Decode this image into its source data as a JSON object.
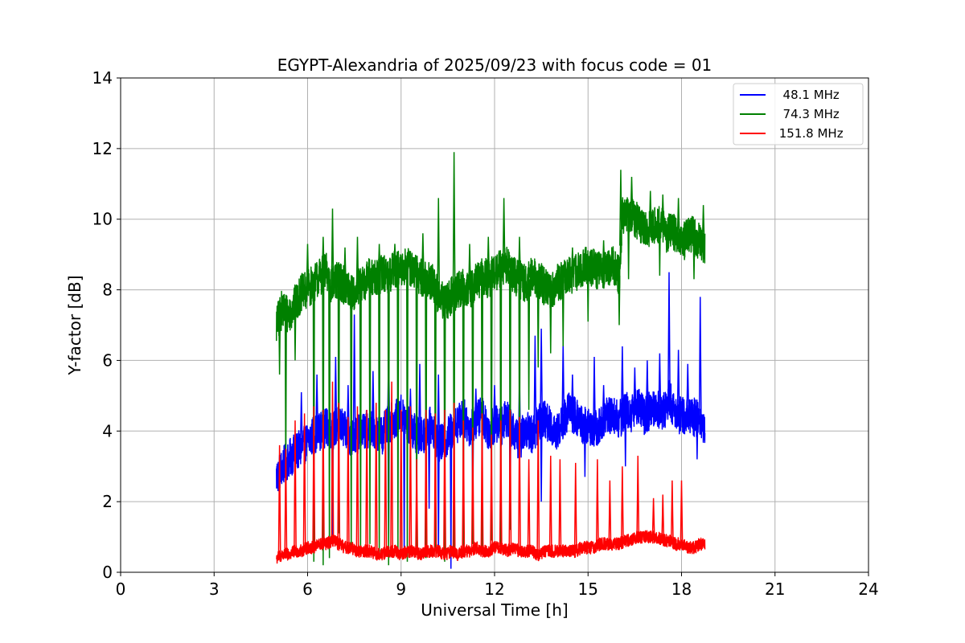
{
  "chart_data": {
    "type": "line",
    "title": "EGYPT-Alexandria of 2025/09/23 with focus code = 01",
    "xlabel": "Universal Time [h]",
    "ylabel": "Y-factor [dB]",
    "xlim": [
      0,
      24
    ],
    "ylim": [
      0,
      14
    ],
    "xticks": [
      0,
      3,
      6,
      9,
      12,
      15,
      18,
      21,
      24
    ],
    "yticks": [
      0,
      2,
      4,
      6,
      8,
      10,
      12,
      14
    ],
    "grid": true,
    "legend_position": "top-right",
    "series": [
      {
        "name": "  48.1 MHz",
        "color": "#0000ff",
        "x": [
          5.0,
          5.2,
          5.4,
          5.6,
          5.8,
          6.0,
          6.2,
          6.4,
          6.6,
          6.8,
          7.0,
          7.2,
          7.4,
          7.6,
          7.8,
          8.0,
          8.2,
          8.4,
          8.6,
          8.8,
          9.0,
          9.2,
          9.4,
          9.6,
          9.8,
          10.0,
          10.2,
          10.4,
          10.6,
          10.8,
          11.0,
          11.2,
          11.4,
          11.6,
          11.8,
          12.0,
          12.2,
          12.4,
          12.6,
          12.8,
          13.0,
          13.2,
          13.4,
          13.6,
          13.8,
          14.0,
          14.2,
          14.4,
          14.6,
          14.8,
          15.0,
          15.2,
          15.4,
          15.6,
          15.8,
          16.0,
          16.2,
          16.4,
          16.6,
          16.8,
          17.0,
          17.2,
          17.4,
          17.6,
          17.8,
          18.0,
          18.2,
          18.4,
          18.6,
          18.75
        ],
        "values": [
          2.7,
          3.0,
          3.2,
          3.4,
          3.5,
          3.7,
          3.9,
          4.0,
          4.1,
          4.0,
          4.2,
          4.0,
          3.8,
          3.9,
          4.0,
          4.1,
          4.0,
          3.9,
          4.2,
          4.3,
          4.5,
          4.2,
          4.0,
          3.8,
          4.0,
          4.2,
          3.6,
          3.7,
          4.0,
          4.2,
          4.4,
          4.1,
          4.3,
          4.5,
          4.0,
          4.2,
          4.1,
          4.4,
          4.0,
          3.7,
          4.1,
          3.9,
          4.2,
          4.4,
          4.1,
          4.0,
          4.3,
          4.6,
          4.4,
          4.2,
          4.1,
          4.0,
          4.2,
          4.4,
          4.5,
          4.3,
          4.6,
          4.5,
          4.8,
          4.4,
          4.6,
          4.7,
          4.5,
          4.9,
          4.6,
          4.4,
          4.5,
          4.4,
          4.3,
          4.0
        ],
        "spikes": [
          [
            5.8,
            5.1
          ],
          [
            6.3,
            5.6
          ],
          [
            6.9,
            6.1
          ],
          [
            7.3,
            5.3
          ],
          [
            7.5,
            7.3
          ],
          [
            8.1,
            5.7
          ],
          [
            8.6,
            6.4
          ],
          [
            9.3,
            5.2
          ],
          [
            9.6,
            5.9
          ],
          [
            10.2,
            5.6
          ],
          [
            11.4,
            5.2
          ],
          [
            12.0,
            5.3
          ],
          [
            12.8,
            5.6
          ],
          [
            13.3,
            6.7
          ],
          [
            13.5,
            6.9
          ],
          [
            14.2,
            6.5
          ],
          [
            14.5,
            5.6
          ],
          [
            15.2,
            6.1
          ],
          [
            15.5,
            5.3
          ],
          [
            16.1,
            6.4
          ],
          [
            16.5,
            5.8
          ],
          [
            16.9,
            6.0
          ],
          [
            17.3,
            6.2
          ],
          [
            17.6,
            8.5
          ],
          [
            17.9,
            6.3
          ],
          [
            18.2,
            5.9
          ],
          [
            18.6,
            7.8
          ]
        ],
        "dips": [
          [
            5.05,
            2.3
          ],
          [
            6.8,
            1.0
          ],
          [
            8.6,
            0.8
          ],
          [
            9.1,
            0.6
          ],
          [
            9.9,
            1.8
          ],
          [
            10.2,
            0.5
          ],
          [
            10.6,
            0.1
          ],
          [
            11.3,
            1.2
          ],
          [
            12.5,
            1.5
          ],
          [
            13.5,
            2.0
          ],
          [
            14.9,
            2.7
          ],
          [
            16.2,
            3.0
          ],
          [
            18.5,
            3.2
          ]
        ]
      },
      {
        "name": "  74.3 MHz",
        "color": "#008000",
        "x": [
          5.0,
          5.2,
          5.4,
          5.6,
          5.8,
          6.0,
          6.2,
          6.4,
          6.6,
          6.8,
          7.0,
          7.2,
          7.4,
          7.6,
          7.8,
          8.0,
          8.2,
          8.4,
          8.6,
          8.8,
          9.0,
          9.2,
          9.4,
          9.6,
          9.8,
          10.0,
          10.2,
          10.4,
          10.6,
          10.8,
          11.0,
          11.2,
          11.4,
          11.6,
          11.8,
          12.0,
          12.2,
          12.4,
          12.6,
          12.8,
          13.0,
          13.2,
          13.4,
          13.6,
          13.8,
          14.0,
          14.2,
          14.4,
          14.6,
          14.8,
          15.0,
          15.2,
          15.4,
          15.6,
          15.8,
          16.0,
          16.1,
          16.3,
          16.5,
          16.7,
          16.9,
          17.1,
          17.3,
          17.5,
          17.7,
          17.9,
          18.1,
          18.3,
          18.5,
          18.75
        ],
        "values": [
          7.0,
          7.5,
          7.3,
          7.6,
          7.9,
          8.0,
          8.2,
          8.4,
          8.5,
          8.1,
          8.3,
          8.1,
          7.9,
          8.0,
          8.2,
          8.4,
          8.3,
          8.5,
          8.4,
          8.6,
          8.5,
          8.7,
          8.5,
          8.4,
          8.3,
          8.2,
          7.8,
          7.6,
          7.8,
          8.0,
          8.1,
          8.0,
          8.2,
          8.4,
          8.3,
          8.5,
          8.6,
          8.7,
          8.4,
          8.3,
          8.2,
          8.4,
          8.3,
          8.1,
          8.0,
          8.2,
          8.3,
          8.4,
          8.5,
          8.6,
          8.7,
          8.6,
          8.5,
          8.6,
          8.7,
          8.4,
          10.1,
          10.2,
          10.0,
          9.8,
          9.7,
          9.8,
          9.9,
          9.6,
          9.7,
          9.5,
          9.4,
          9.6,
          9.4,
          9.3
        ],
        "spikes": [
          [
            6.0,
            9.3
          ],
          [
            6.5,
            9.5
          ],
          [
            6.8,
            10.3
          ],
          [
            7.2,
            9.2
          ],
          [
            7.6,
            9.5
          ],
          [
            8.3,
            9.3
          ],
          [
            8.8,
            9.3
          ],
          [
            9.3,
            9.1
          ],
          [
            9.7,
            9.6
          ],
          [
            10.2,
            10.6
          ],
          [
            10.7,
            11.9
          ],
          [
            11.2,
            9.3
          ],
          [
            11.8,
            9.5
          ],
          [
            12.3,
            10.6
          ],
          [
            12.8,
            9.5
          ],
          [
            14.5,
            9.2
          ],
          [
            15.5,
            9.4
          ],
          [
            16.05,
            11.4
          ],
          [
            16.4,
            11.2
          ],
          [
            17.0,
            10.8
          ],
          [
            17.4,
            10.7
          ],
          [
            17.9,
            10.6
          ],
          [
            18.7,
            10.4
          ]
        ],
        "dips": [
          [
            5.1,
            5.6
          ],
          [
            5.3,
            2.6
          ],
          [
            5.6,
            6.0
          ],
          [
            6.2,
            0.3
          ],
          [
            6.5,
            0.2
          ],
          [
            6.7,
            0.4
          ],
          [
            7.0,
            1.1
          ],
          [
            7.4,
            0.6
          ],
          [
            7.7,
            0.5
          ],
          [
            8.0,
            0.8
          ],
          [
            8.3,
            0.4
          ],
          [
            8.6,
            0.2
          ],
          [
            8.9,
            0.5
          ],
          [
            9.2,
            0.3
          ],
          [
            9.5,
            0.6
          ],
          [
            9.8,
            0.4
          ],
          [
            10.1,
            0.6
          ],
          [
            10.4,
            0.3
          ],
          [
            10.7,
            0.7
          ],
          [
            11.0,
            0.5
          ],
          [
            11.3,
            0.8
          ],
          [
            11.6,
            0.6
          ],
          [
            11.9,
            0.9
          ],
          [
            12.2,
            0.7
          ],
          [
            12.5,
            1.2
          ],
          [
            12.8,
            2.0
          ],
          [
            13.1,
            4.6
          ],
          [
            13.4,
            5.8
          ],
          [
            13.8,
            6.2
          ],
          [
            14.2,
            6.4
          ],
          [
            15.0,
            7.1
          ],
          [
            16.0,
            7.0
          ],
          [
            16.3,
            8.3
          ],
          [
            17.3,
            8.4
          ],
          [
            18.4,
            8.3
          ]
        ]
      },
      {
        "name": " 151.8 MHz",
        "color": "#ff0000",
        "x": [
          5.0,
          5.2,
          5.4,
          5.6,
          5.8,
          6.0,
          6.2,
          6.4,
          6.6,
          6.8,
          7.0,
          7.2,
          7.4,
          7.6,
          7.8,
          8.0,
          8.2,
          8.4,
          8.6,
          8.8,
          9.0,
          9.2,
          9.4,
          9.6,
          9.8,
          10.0,
          10.2,
          10.4,
          10.6,
          10.8,
          11.0,
          11.2,
          11.4,
          11.6,
          11.8,
          12.0,
          12.2,
          12.4,
          12.6,
          12.8,
          13.0,
          13.2,
          13.4,
          13.6,
          13.8,
          14.0,
          14.2,
          14.4,
          14.6,
          14.8,
          15.0,
          15.2,
          15.4,
          15.6,
          15.8,
          16.0,
          16.2,
          16.4,
          16.6,
          16.8,
          17.0,
          17.2,
          17.4,
          17.6,
          17.8,
          18.0,
          18.2,
          18.4,
          18.6,
          18.75
        ],
        "values": [
          0.4,
          0.5,
          0.5,
          0.6,
          0.6,
          0.7,
          0.7,
          0.8,
          0.8,
          0.9,
          0.8,
          0.7,
          0.7,
          0.6,
          0.6,
          0.6,
          0.5,
          0.5,
          0.6,
          0.6,
          0.5,
          0.6,
          0.6,
          0.5,
          0.6,
          0.6,
          0.6,
          0.5,
          0.6,
          0.5,
          0.6,
          0.6,
          0.7,
          0.6,
          0.6,
          0.7,
          0.7,
          0.6,
          0.7,
          0.6,
          0.6,
          0.6,
          0.5,
          0.6,
          0.6,
          0.6,
          0.6,
          0.6,
          0.6,
          0.7,
          0.7,
          0.7,
          0.8,
          0.8,
          0.8,
          0.8,
          0.9,
          0.9,
          1.0,
          1.0,
          1.0,
          1.0,
          0.9,
          0.9,
          0.8,
          0.8,
          0.7,
          0.7,
          0.8,
          0.8
        ],
        "spikes": [
          [
            5.1,
            3.6
          ],
          [
            5.3,
            3.5
          ],
          [
            5.6,
            4.3
          ],
          [
            5.9,
            4.5
          ],
          [
            6.2,
            4.7
          ],
          [
            6.5,
            4.6
          ],
          [
            6.8,
            5.4
          ],
          [
            7.0,
            4.8
          ],
          [
            7.3,
            4.4
          ],
          [
            7.6,
            4.7
          ],
          [
            7.9,
            4.6
          ],
          [
            8.2,
            4.8
          ],
          [
            8.5,
            4.6
          ],
          [
            8.7,
            5.4
          ],
          [
            9.0,
            4.6
          ],
          [
            9.3,
            4.7
          ],
          [
            9.5,
            3.2
          ],
          [
            9.8,
            4.6
          ],
          [
            10.1,
            4.5
          ],
          [
            10.4,
            4.6
          ],
          [
            10.7,
            4.8
          ],
          [
            11.0,
            4.3
          ],
          [
            11.3,
            4.1
          ],
          [
            11.6,
            4.5
          ],
          [
            11.9,
            3.9
          ],
          [
            12.2,
            4.3
          ],
          [
            12.5,
            4.6
          ],
          [
            12.8,
            4.4
          ],
          [
            13.1,
            3.2
          ],
          [
            13.4,
            4.3
          ],
          [
            13.8,
            3.3
          ],
          [
            14.1,
            3.2
          ],
          [
            14.6,
            3.1
          ],
          [
            15.3,
            3.2
          ],
          [
            15.7,
            2.6
          ],
          [
            16.1,
            3.0
          ],
          [
            16.6,
            3.3
          ],
          [
            17.1,
            2.1
          ],
          [
            17.4,
            2.2
          ],
          [
            17.7,
            2.6
          ],
          [
            18.0,
            2.6
          ]
        ],
        "dips": []
      }
    ]
  },
  "legend": [
    {
      "label": "  48.1 MHz",
      "color": "#0000ff"
    },
    {
      "label": "  74.3 MHz",
      "color": "#008000"
    },
    {
      "label": " 151.8 MHz",
      "color": "#ff0000"
    }
  ]
}
